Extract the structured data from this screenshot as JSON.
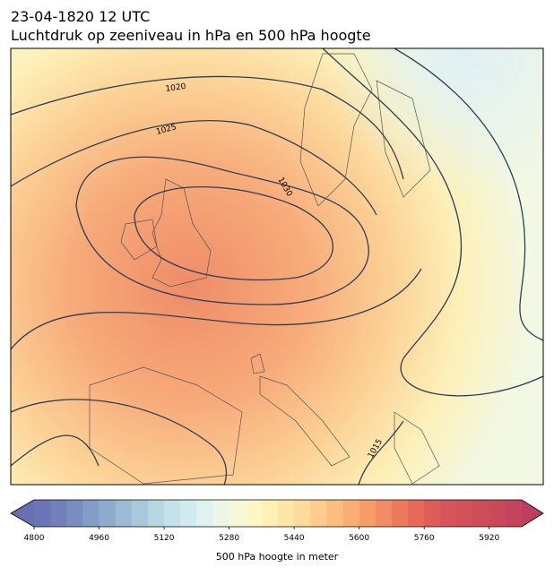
{
  "header": {
    "title": "23-04-1820 12 UTC",
    "subtitle": "Luchtdruk op zeeniveau in hPa en 500 hPa hoogte"
  },
  "isobar_labels": [
    "1020",
    "1025",
    "1030",
    "1015"
  ],
  "colorbar": {
    "label": "500 hPa hoogte in meter",
    "lim": [
      4800,
      6000
    ],
    "ticks": [
      4800,
      4960,
      5120,
      5280,
      5440,
      5600,
      5760,
      5920
    ],
    "colors": [
      "#6b74b5",
      "#717fba",
      "#7a8dc0",
      "#839dc7",
      "#8dabcc",
      "#9bbad3",
      "#a8c8db",
      "#b6d6e2",
      "#c4e2ea",
      "#d2ebf0",
      "#e0f2f0",
      "#ecf6e6",
      "#f6f9d8",
      "#fcf8c6",
      "#fdf1b6",
      "#fde7a8",
      "#fddb9a",
      "#fccd8c",
      "#fbbe7f",
      "#f9ae74",
      "#f69d6a",
      "#f28c62",
      "#ec7b5c",
      "#e56b58",
      "#dc5c57",
      "#d6555a",
      "#d15157",
      "#cc4d58",
      "#c84a59",
      "#c3445c"
    ],
    "under_color": "#6670b0",
    "over_color": "#bd3f5e"
  }
}
